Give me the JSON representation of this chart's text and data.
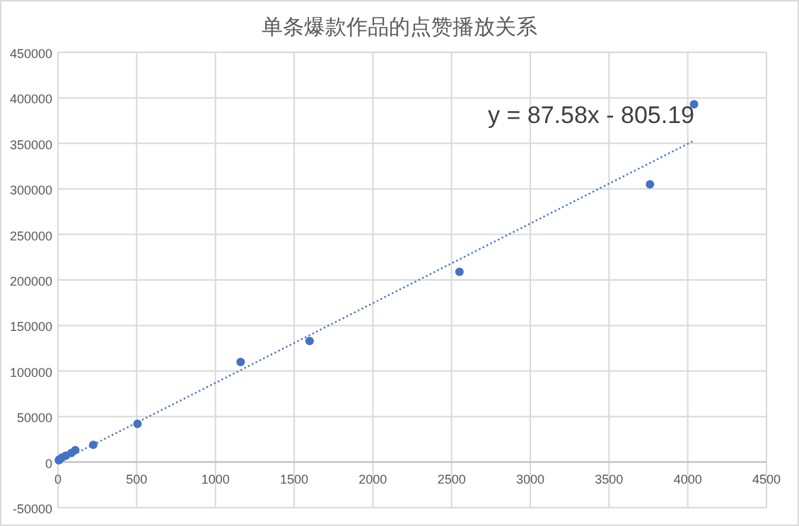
{
  "chart_data": {
    "type": "scatter",
    "title": "单条爆款作品的点赞播放关系",
    "series": [
      {
        "color": "#4472c4",
        "marker": "circle",
        "x": [
          5,
          10,
          25,
          50,
          85,
          110,
          224,
          505,
          1160,
          1598,
          2550,
          3760,
          4040
        ],
        "values": [
          2000,
          3000,
          5000,
          7000,
          10000,
          13000,
          19000,
          42000,
          110000,
          133000,
          209000,
          305000,
          393000
        ]
      },
      {
        "type": "line",
        "color": "#4472c4",
        "line_style": "dotted",
        "x": [
          5,
          4040
        ],
        "values": [
          0,
          353000
        ]
      }
    ],
    "annotations": [
      "y = 87.58x - 805.19"
    ],
    "xlim": [
      0,
      4500
    ],
    "xticks": [
      0,
      500,
      1000,
      1500,
      2000,
      2500,
      3000,
      3500,
      4000,
      4500
    ],
    "ylim": [
      -50000,
      450000
    ],
    "yticks": [
      -50000,
      0,
      50000,
      100000,
      150000,
      200000,
      250000,
      300000,
      350000,
      400000,
      450000
    ],
    "grid": true
  }
}
